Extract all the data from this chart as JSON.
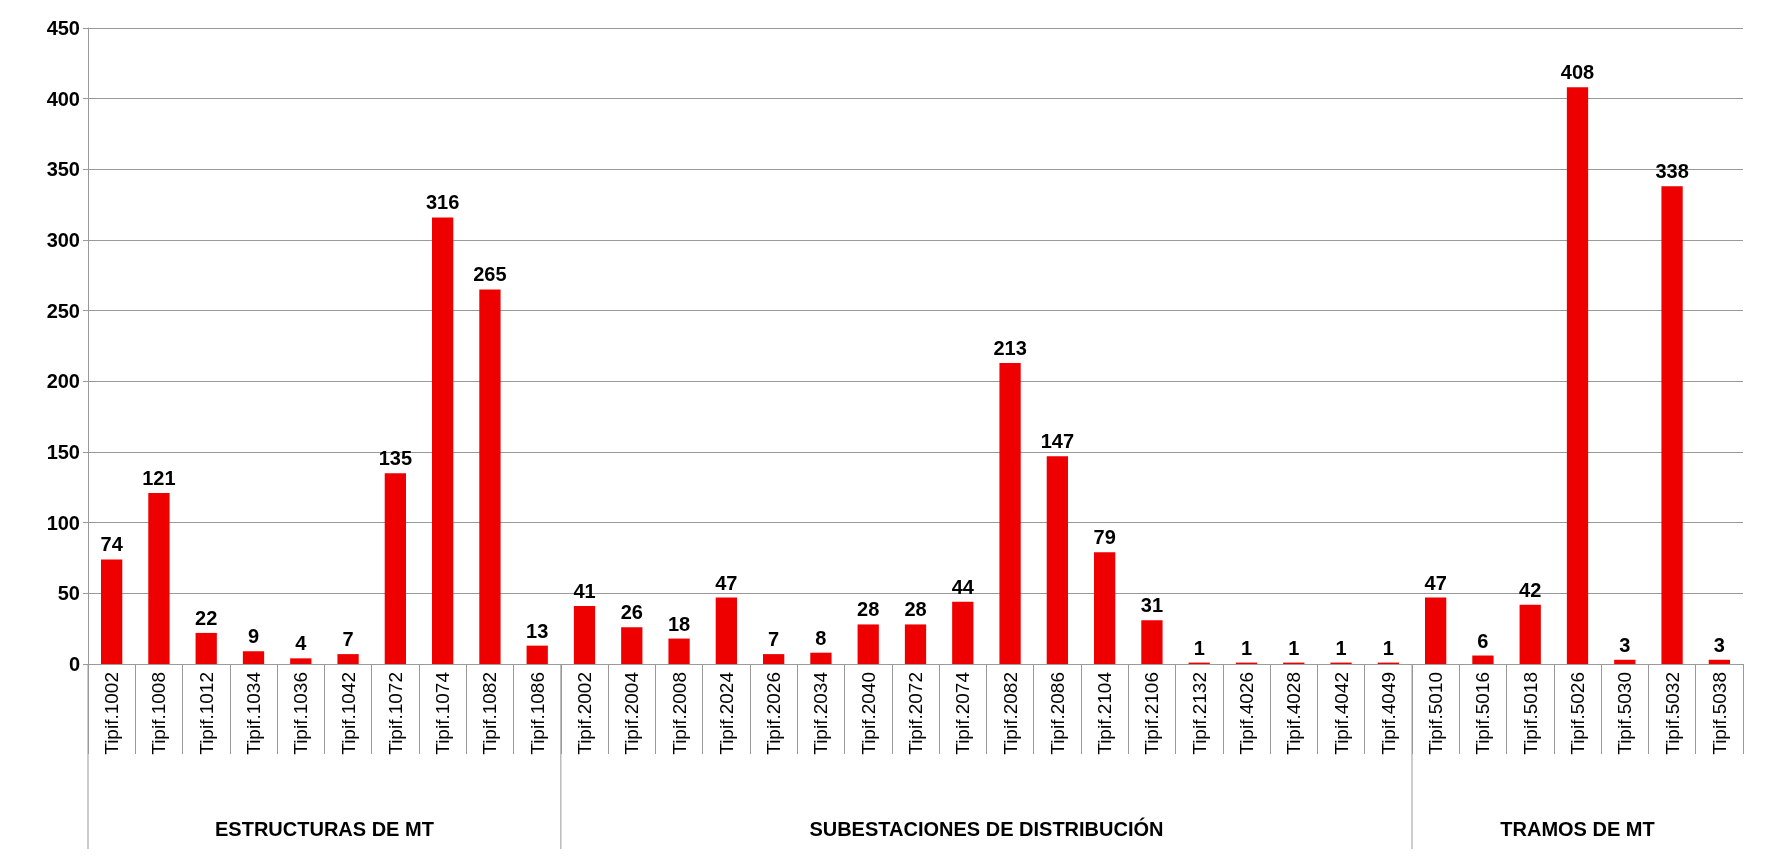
{
  "chart_data": {
    "type": "bar",
    "categories": [
      "Tipif.1002",
      "Tipif.1008",
      "Tipif.1012",
      "Tipif.1034",
      "Tipif.1036",
      "Tipif.1042",
      "Tipif.1072",
      "Tipif.1074",
      "Tipif.1082",
      "Tipif.1086",
      "Tipif.2002",
      "Tipif.2004",
      "Tipif.2008",
      "Tipif.2024",
      "Tipif.2026",
      "Tipif.2034",
      "Tipif.2040",
      "Tipif.2072",
      "Tipif.2074",
      "Tipif.2082",
      "Tipif.2086",
      "Tipif.2104",
      "Tipif.2106",
      "Tipif.2132",
      "Tipif.4026",
      "Tipif.4028",
      "Tipif.4042",
      "Tipif.4049",
      "Tipif.5010",
      "Tipif.5016",
      "Tipif.5018",
      "Tipif.5026",
      "Tipif.5030",
      "Tipif.5032",
      "Tipif.5038"
    ],
    "values": [
      74,
      121,
      22,
      9,
      4,
      7,
      135,
      316,
      265,
      13,
      41,
      26,
      18,
      47,
      7,
      8,
      28,
      28,
      44,
      213,
      147,
      79,
      31,
      1,
      1,
      1,
      1,
      1,
      47,
      6,
      42,
      408,
      3,
      338,
      3
    ],
    "color": "#ee0000",
    "ylim": [
      0,
      450
    ],
    "yticks": [
      0,
      50,
      100,
      150,
      200,
      250,
      300,
      350,
      400,
      450
    ],
    "grid": "y",
    "data_labels": true,
    "annotations": [
      "ESTRUCTURAS DE MT",
      "SUBESTACIONES DE DISTRIBUCIÓN",
      "TRAMOS DE MT"
    ]
  }
}
